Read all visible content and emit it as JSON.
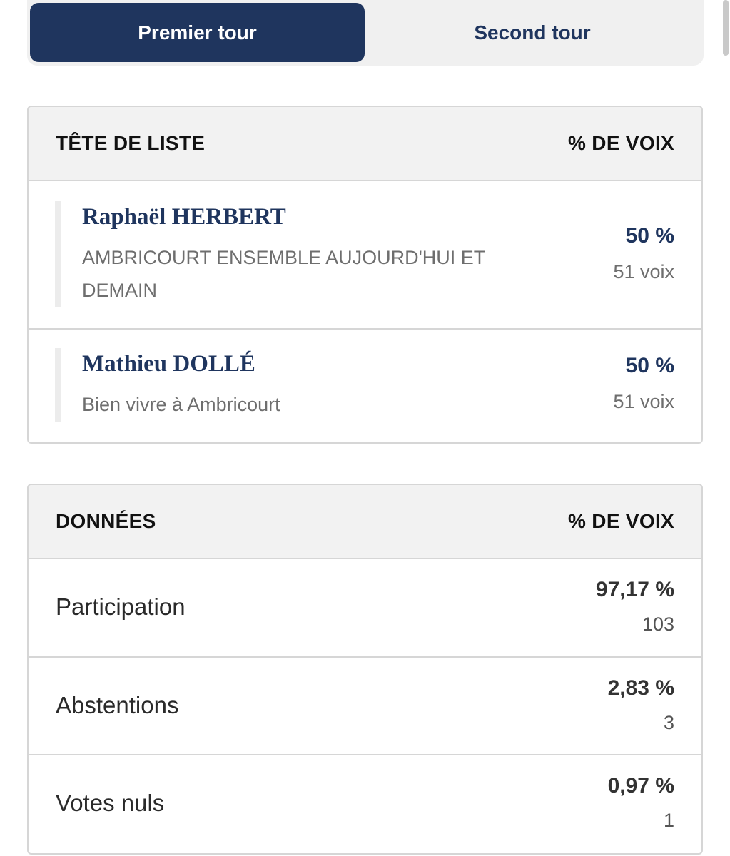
{
  "tabs": {
    "first": "Premier tour",
    "second": "Second tour"
  },
  "results": {
    "header_left": "TÊTE DE LISTE",
    "header_right": "% DE VOIX",
    "candidates": [
      {
        "name": "Raphaël HERBERT",
        "list": "AMBRICOURT ENSEMBLE AUJOURD'HUI ET DEMAIN",
        "percent": "50 %",
        "votes": "51 voix"
      },
      {
        "name": "Mathieu DOLLÉ",
        "list": "Bien vivre à Ambricourt",
        "percent": "50 %",
        "votes": "51 voix"
      }
    ]
  },
  "data": {
    "header_left": "DONNÉES",
    "header_right": "% DE VOIX",
    "rows": [
      {
        "label": "Participation",
        "percent": "97,17 %",
        "count": "103"
      },
      {
        "label": "Abstentions",
        "percent": "2,83 %",
        "count": "3"
      },
      {
        "label": "Votes nuls",
        "percent": "0,97 %",
        "count": "1"
      }
    ]
  },
  "colors": {
    "accent": "#1f355e",
    "header_bg": "#f2f2f2",
    "border": "#d6d6d6"
  }
}
